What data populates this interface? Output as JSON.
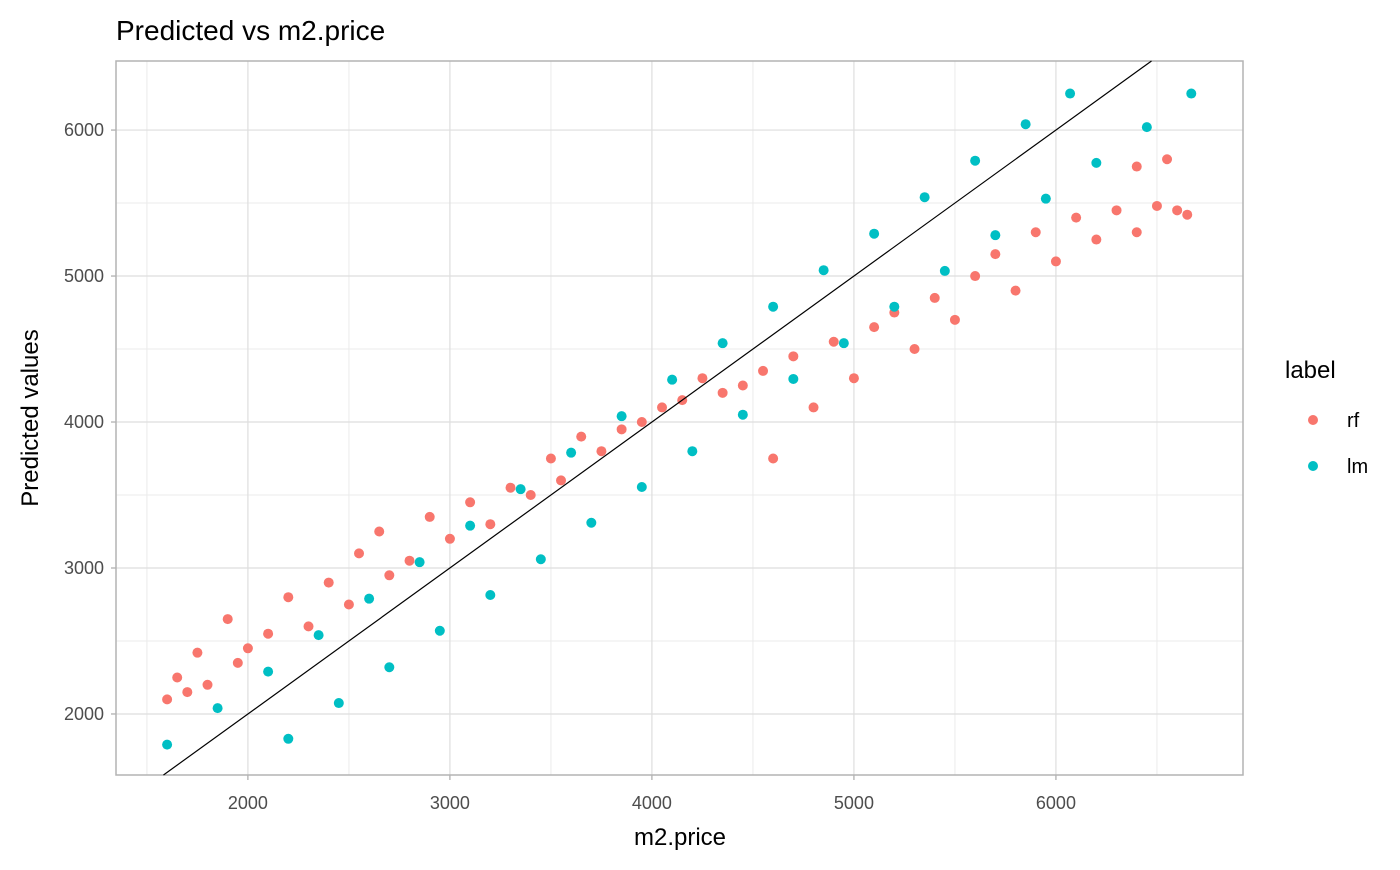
{
  "chart_data": {
    "type": "scatter",
    "title": "Predicted vs m2.price",
    "x_label": "m2.price",
    "y_label": "Predicted values",
    "legend_title": "label",
    "legend_position": "right",
    "grid": true,
    "xlim": [
      1347,
      6926
    ],
    "ylim": [
      1582,
      6473
    ],
    "xticks": [
      2000,
      3000,
      4000,
      5000,
      6000
    ],
    "yticks": [
      2000,
      3000,
      4000,
      5000,
      6000
    ],
    "series": [
      {
        "name": "rf",
        "color": "#f8766d",
        "x": [
          1600,
          1650,
          1700,
          1750,
          1800,
          1900,
          1950,
          2000,
          2100,
          2200,
          2300,
          2400,
          2500,
          2550,
          2650,
          2700,
          2800,
          2900,
          3000,
          3100,
          3200,
          3300,
          3400,
          3500,
          3550,
          3650,
          3750,
          3850,
          3950,
          4050,
          4150,
          4250,
          4350,
          4450,
          4550,
          4600,
          4700,
          4800,
          4900,
          5000,
          5100,
          5200,
          5300,
          5400,
          5500,
          5600,
          5700,
          5800,
          5900,
          6000,
          6100,
          6200,
          6300,
          6400,
          6500,
          6550,
          6600,
          6650,
          6400
        ],
        "values": [
          2100,
          2250,
          2150,
          2420,
          2200,
          2650,
          2350,
          2450,
          2550,
          2800,
          2600,
          2900,
          2750,
          3100,
          3250,
          2950,
          3050,
          3350,
          3200,
          3450,
          3300,
          3550,
          3500,
          3750,
          3600,
          3900,
          3800,
          3950,
          4000,
          4100,
          4150,
          4300,
          4200,
          4250,
          4350,
          3750,
          4450,
          4100,
          4550,
          4300,
          4650,
          4750,
          4500,
          4850,
          4700,
          5000,
          5150,
          4900,
          5300,
          5100,
          5400,
          5250,
          5450,
          5300,
          5480,
          5800,
          5450,
          5420,
          5750
        ]
      },
      {
        "name": "lm",
        "color": "#00bfc4",
        "x": [
          1600,
          1850,
          2100,
          2350,
          2600,
          2850,
          3100,
          3350,
          3600,
          3850,
          4100,
          4350,
          4600,
          4850,
          5100,
          5350,
          5600,
          5850,
          6070,
          2200,
          2450,
          2700,
          2950,
          3200,
          3450,
          3700,
          3950,
          4200,
          4450,
          4700,
          4950,
          5200,
          5450,
          5700,
          5950,
          6200,
          6450,
          6670
        ],
        "values": [
          1790,
          2040,
          2290,
          2540,
          2790,
          3040,
          3290,
          3540,
          3790,
          4040,
          4290,
          4540,
          4790,
          5040,
          5290,
          5540,
          5790,
          6040,
          6250,
          1830,
          2075,
          2320,
          2570,
          2815,
          3060,
          3310,
          3555,
          3800,
          4050,
          4295,
          4540,
          4790,
          5035,
          5280,
          5530,
          5775,
          6020,
          6250
        ]
      }
    ]
  }
}
